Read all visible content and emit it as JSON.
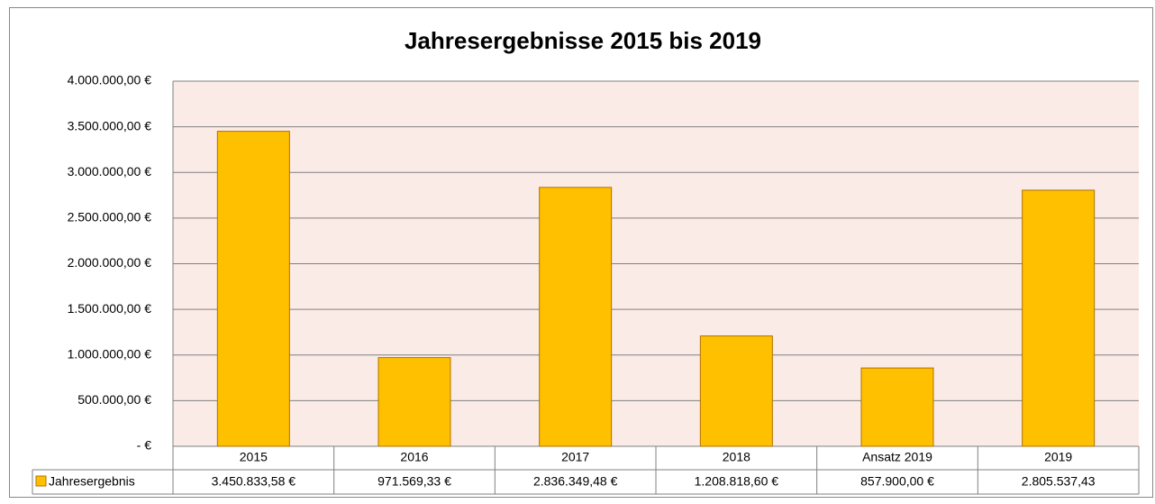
{
  "chart_data": {
    "type": "bar",
    "title": "Jahresergebnisse 2015 bis 2019",
    "categories": [
      "2015",
      "2016",
      "2017",
      "2018",
      "Ansatz 2019",
      "2019"
    ],
    "series": [
      {
        "name": "Jahresergebnis",
        "color": "#ffc000",
        "values": [
          3450833.58,
          971569.33,
          2836349.48,
          1208818.6,
          857900.0,
          2805537.43
        ],
        "value_labels": [
          "3.450.833,58 €",
          "971.569,33 €",
          "2.836.349,48 €",
          "1.208.818,60 €",
          "857.900,00 €",
          "2.805.537,43"
        ]
      }
    ],
    "ylim": [
      0,
      4000000
    ],
    "yticks": [
      {
        "value": 0,
        "label": "-  €"
      },
      {
        "value": 500000,
        "label": "500.000,00 €"
      },
      {
        "value": 1000000,
        "label": "1.000.000,00 €"
      },
      {
        "value": 1500000,
        "label": "1.500.000,00 €"
      },
      {
        "value": 2000000,
        "label": "2.000.000,00 €"
      },
      {
        "value": 2500000,
        "label": "2.500.000,00 €"
      },
      {
        "value": 3000000,
        "label": "3.000.000,00 €"
      },
      {
        "value": 3500000,
        "label": "3.500.000,00 €"
      },
      {
        "value": 4000000,
        "label": "4.000.000,00 €"
      }
    ],
    "grid": true
  }
}
